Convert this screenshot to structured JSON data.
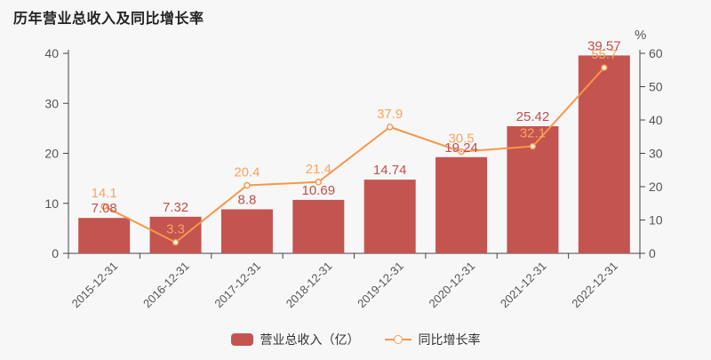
{
  "title": "历年营业总收入及同比增长率",
  "colors": {
    "bar": "#c35450",
    "bar_label": "#c0504d",
    "line": "#f89748",
    "line_label": "#f9a45e",
    "point_fill": "#ffffff",
    "axis_line": "#444444",
    "axis_text": "#555555",
    "background": "#f7f7f7",
    "title_text": "#222222",
    "legend_text": "#333333"
  },
  "chart_data": {
    "type": "bar+line",
    "title": "历年营业总收入及同比增长率",
    "categories": [
      "2015-12-31",
      "2016-12-31",
      "2017-12-31",
      "2018-12-31",
      "2019-12-31",
      "2020-12-31",
      "2021-12-31",
      "2022-12-31"
    ],
    "series": [
      {
        "name": "营业总收入（亿）",
        "type": "bar",
        "y_axis": "left",
        "values": [
          7.08,
          7.32,
          8.8,
          10.69,
          14.74,
          19.24,
          25.42,
          39.57
        ],
        "labels": [
          "7.08",
          "7.32",
          "8.8",
          "10.69",
          "14.74",
          "19.24",
          "25.42",
          "39.57"
        ]
      },
      {
        "name": "同比增长率",
        "type": "line",
        "y_axis": "right",
        "values": [
          14.1,
          3.3,
          20.4,
          21.4,
          37.9,
          30.5,
          32.1,
          55.7
        ],
        "labels": [
          "14.1",
          "3.3",
          "20.4",
          "21.4",
          "37.9",
          "30.5",
          "32.1",
          "55.7"
        ]
      }
    ],
    "left_axis": {
      "min": 0,
      "max": 40,
      "ticks": [
        "0",
        "10",
        "20",
        "30",
        "40"
      ]
    },
    "right_axis": {
      "min": 0,
      "max": 60,
      "ticks": [
        "0",
        "10",
        "20",
        "30",
        "40",
        "50",
        "60"
      ],
      "unit": "%"
    },
    "grid": false,
    "legend_position": "bottom-center",
    "x_label_rotation": -45
  },
  "legend": {
    "items": [
      {
        "label": "营业总收入（亿）",
        "marker": "bar-swatch"
      },
      {
        "label": "同比增长率",
        "marker": "line-dot"
      }
    ]
  }
}
